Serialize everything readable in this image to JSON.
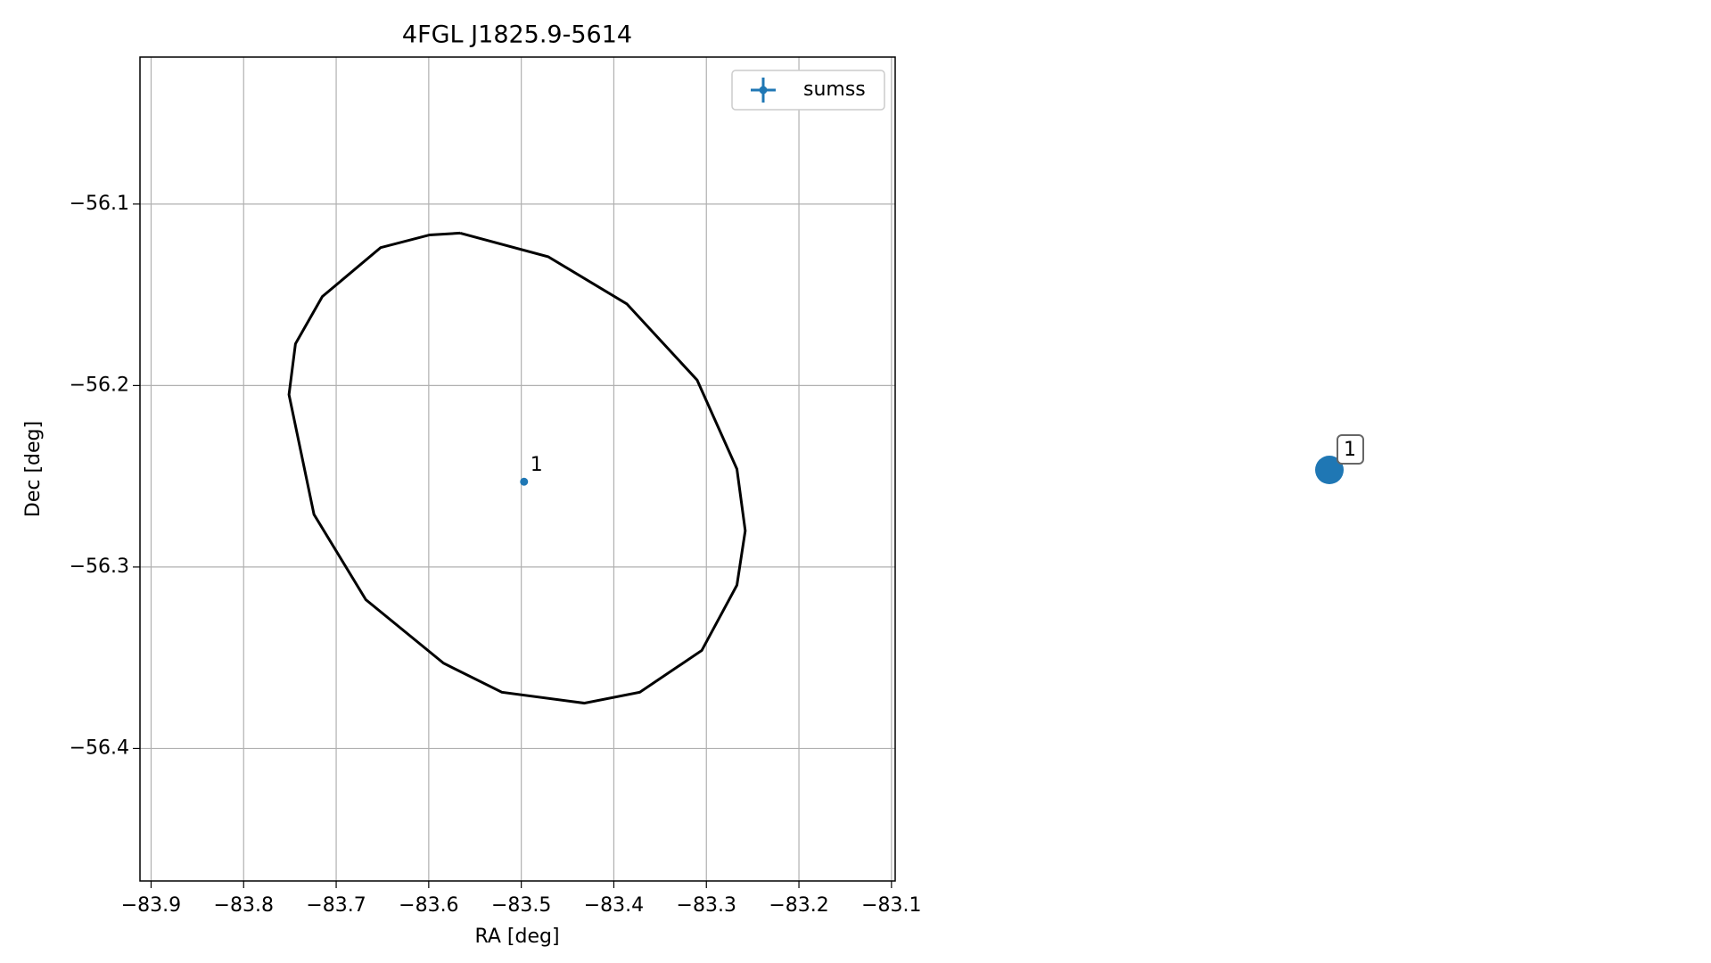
{
  "chart_data": {
    "type": "scatter",
    "title": "4FGL J1825.9-5614",
    "xlabel": "RA [deg]",
    "ylabel": "Dec [deg]",
    "xlim": [
      -83.912,
      -83.096
    ],
    "ylim": [
      -56.473,
      -56.019
    ],
    "xticks": [
      {
        "value": -83.9,
        "label": "−83.9"
      },
      {
        "value": -83.8,
        "label": "−83.8"
      },
      {
        "value": -83.7,
        "label": "−83.7"
      },
      {
        "value": -83.6,
        "label": "−83.6"
      },
      {
        "value": -83.5,
        "label": "−83.5"
      },
      {
        "value": -83.4,
        "label": "−83.4"
      },
      {
        "value": -83.3,
        "label": "−83.3"
      },
      {
        "value": -83.2,
        "label": "−83.2"
      },
      {
        "value": -83.1,
        "label": "−83.1"
      }
    ],
    "yticks": [
      {
        "value": -56.1,
        "label": "−56.1"
      },
      {
        "value": -56.2,
        "label": "−56.2"
      },
      {
        "value": -56.3,
        "label": "−56.3"
      },
      {
        "value": -56.4,
        "label": "−56.4"
      }
    ],
    "grid": true,
    "legend": "upper right",
    "series": [
      {
        "name": "sumss",
        "color": "#1f77b4",
        "x": [
          -83.497
        ],
        "y": [
          -56.253
        ],
        "labels": [
          "1"
        ]
      }
    ],
    "ellipse": {
      "color": "#000000",
      "x": [
        -83.566,
        -83.471,
        -83.386,
        -83.31,
        -83.267,
        -83.258,
        -83.267,
        -83.305,
        -83.372,
        -83.432,
        -83.521,
        -83.584,
        -83.668,
        -83.724,
        -83.751,
        -83.744,
        -83.715,
        -83.652,
        -83.599,
        -83.566
      ],
      "y": [
        -56.116,
        -56.129,
        -56.155,
        -56.197,
        -56.246,
        -56.28,
        -56.31,
        -56.346,
        -56.369,
        -56.375,
        -56.369,
        -56.353,
        -56.318,
        -56.271,
        -56.205,
        -56.177,
        -56.151,
        -56.124,
        -56.117,
        -56.116
      ]
    }
  }
}
